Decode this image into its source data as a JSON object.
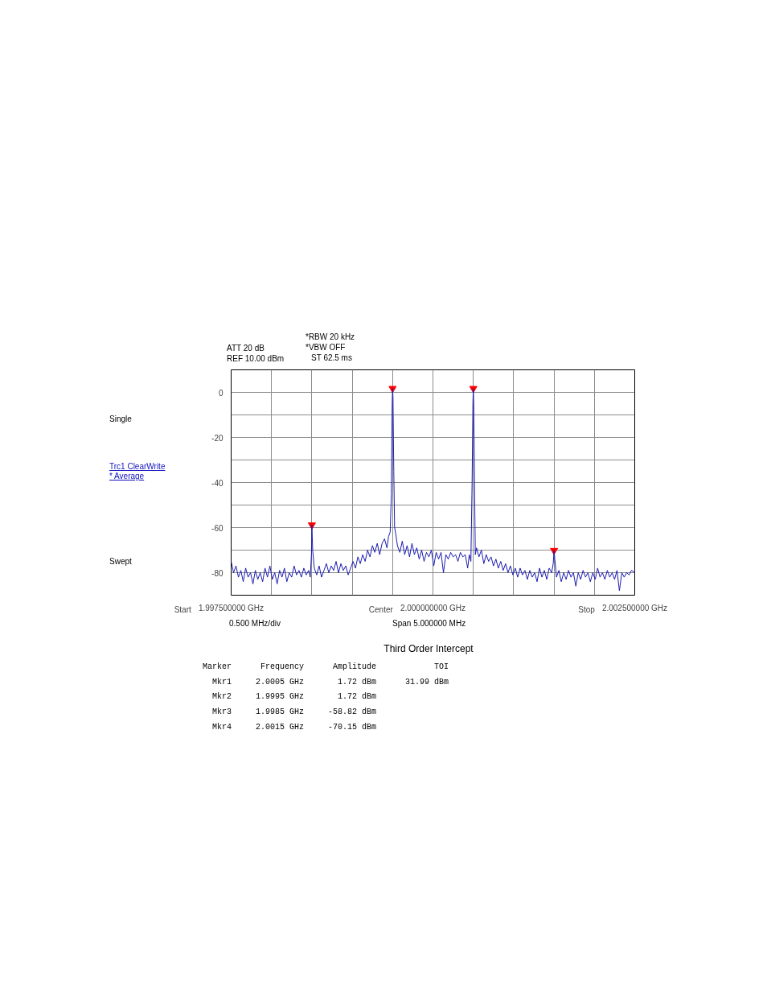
{
  "chart_data": {
    "type": "line",
    "xlim": [
      1.9975,
      2.0025
    ],
    "ylim": [
      -90,
      10
    ],
    "xticks": [
      {
        "value": 1.9975,
        "label": "1.997500000 GHz"
      },
      {
        "value": 1.998,
        "label": null
      },
      {
        "value": 1.9985,
        "label": null
      },
      {
        "value": 1.999,
        "label": null
      },
      {
        "value": 1.9995,
        "label": null
      },
      {
        "value": 2.0,
        "label": "2.000000000 GHz"
      },
      {
        "value": 2.0005,
        "label": null
      },
      {
        "value": 2.001,
        "label": null
      },
      {
        "value": 2.0015,
        "label": null
      },
      {
        "value": 2.002,
        "label": null
      },
      {
        "value": 2.0025,
        "label": "2.002500000 GHz"
      }
    ],
    "yticks": [
      0,
      {
        "value": -10,
        "label": null
      },
      -20,
      {
        "value": -30,
        "label": null
      },
      -40,
      {
        "value": -50,
        "label": null
      },
      -60,
      {
        "value": -70,
        "label": null
      },
      -80
    ],
    "grid": true,
    "line_style": "solid",
    "series": [
      {
        "type": "line",
        "color": "#1c1cb0",
        "x": [
          1.9975,
          1.99753,
          1.99756,
          1.99759,
          1.99762,
          1.99765,
          1.99768,
          1.99771,
          1.99774,
          1.99777,
          1.9978,
          1.99783,
          1.99786,
          1.99789,
          1.99792,
          1.99795,
          1.99798,
          1.99801,
          1.99804,
          1.99807,
          1.9981,
          1.99813,
          1.99816,
          1.99819,
          1.99822,
          1.99825,
          1.99828,
          1.99831,
          1.99834,
          1.99837,
          1.9984,
          1.99843,
          1.99846,
          1.99848,
          1.998495,
          1.9985,
          1.99851,
          1.99853,
          1.99856,
          1.99859,
          1.99862,
          1.99865,
          1.99868,
          1.99871,
          1.99874,
          1.99877,
          1.9988,
          1.99883,
          1.99886,
          1.99889,
          1.99892,
          1.99895,
          1.99898,
          1.99901,
          1.99904,
          1.99907,
          1.9991,
          1.99913,
          1.99916,
          1.99919,
          1.99922,
          1.99925,
          1.99928,
          1.99931,
          1.99934,
          1.99937,
          1.9994,
          1.99943,
          1.99945,
          1.99947,
          1.999485,
          1.999495,
          1.9995,
          1.999505,
          1.999515,
          1.999525,
          1.99954,
          1.99956,
          1.99959,
          1.99962,
          1.99965,
          1.99968,
          1.99971,
          1.99974,
          1.99977,
          1.9998,
          1.99983,
          1.99986,
          1.99989,
          1.99992,
          1.99995,
          1.99998,
          2.00001,
          2.00004,
          2.00007,
          2.0001,
          2.00013,
          2.00016,
          2.00019,
          2.00022,
          2.00025,
          2.00028,
          2.00031,
          2.00034,
          2.00037,
          2.0004,
          2.00043,
          2.00045,
          2.00047,
          2.000485,
          2.000495,
          2.0005,
          2.000505,
          2.000515,
          2.000525,
          2.00054,
          2.00057,
          2.0006,
          2.00063,
          2.00066,
          2.00069,
          2.00072,
          2.00075,
          2.00078,
          2.00081,
          2.00084,
          2.00087,
          2.0009,
          2.00093,
          2.00096,
          2.00099,
          2.00102,
          2.00105,
          2.00108,
          2.00111,
          2.00114,
          2.00117,
          2.0012,
          2.00123,
          2.00126,
          2.00129,
          2.00132,
          2.00135,
          2.00138,
          2.00141,
          2.00144,
          2.00147,
          2.00149,
          2.0015,
          2.00151,
          2.00153,
          2.00156,
          2.00159,
          2.00162,
          2.00165,
          2.00168,
          2.00171,
          2.00174,
          2.00177,
          2.0018,
          2.00183,
          2.00186,
          2.00189,
          2.00192,
          2.00195,
          2.00198,
          2.00201,
          2.00204,
          2.00207,
          2.0021,
          2.00213,
          2.00216,
          2.00219,
          2.00222,
          2.00225,
          2.00228,
          2.00231,
          2.00234,
          2.00237,
          2.0024,
          2.00243,
          2.00246,
          2.0025
        ],
        "values": [
          -75,
          -80,
          -77,
          -82,
          -79,
          -84,
          -78,
          -82,
          -80,
          -85,
          -79,
          -83,
          -80,
          -84,
          -78,
          -82,
          -77,
          -83,
          -80,
          -85,
          -79,
          -82,
          -78,
          -84,
          -80,
          -82,
          -77,
          -81,
          -79,
          -82,
          -78,
          -81,
          -79,
          -82,
          -72,
          -58.82,
          -70,
          -78,
          -81,
          -77,
          -82,
          -79,
          -76,
          -80,
          -77,
          -79,
          -75,
          -80,
          -76,
          -79,
          -77,
          -81,
          -78,
          -75,
          -78,
          -73,
          -76,
          -72,
          -75,
          -70,
          -73,
          -68,
          -71,
          -67,
          -72,
          -67,
          -65,
          -69,
          -64,
          -62,
          -45,
          -5,
          1.72,
          -2,
          -35,
          -60,
          -63,
          -68,
          -71,
          -66,
          -72,
          -68,
          -73,
          -67,
          -72,
          -69,
          -74,
          -70,
          -75,
          -71,
          -73,
          -70,
          -77,
          -71,
          -74,
          -71,
          -80,
          -72,
          -74,
          -71,
          -73,
          -72,
          -75,
          -71,
          -73,
          -72,
          -78,
          -72,
          -75,
          -40,
          -5,
          1.72,
          -5,
          -40,
          -72,
          -69,
          -73,
          -70,
          -76,
          -72,
          -75,
          -73,
          -77,
          -74,
          -78,
          -75,
          -79,
          -76,
          -80,
          -77,
          -81,
          -78,
          -82,
          -78,
          -81,
          -79,
          -83,
          -79,
          -82,
          -80,
          -84,
          -78,
          -82,
          -79,
          -83,
          -78,
          -80,
          -76,
          -70.15,
          -74,
          -82,
          -79,
          -84,
          -80,
          -83,
          -79,
          -82,
          -80,
          -86,
          -80,
          -83,
          -79,
          -82,
          -80,
          -84,
          -80,
          -83,
          -78,
          -82,
          -80,
          -83,
          -79,
          -82,
          -80,
          -83,
          -79,
          -88,
          -80,
          -82,
          -80,
          -81,
          -79,
          -80
        ]
      },
      {
        "type": "scatter",
        "marker": "triangle",
        "color": "#ff0000",
        "x": [
          2.0005,
          1.9995,
          1.9985,
          2.0015
        ],
        "values": [
          1.72,
          1.72,
          -58.82,
          -70.15
        ]
      }
    ],
    "annotations": [
      "ATT 20 dB",
      "REF 10.00 dBm",
      "*RBW 20 kHz",
      "*VBW OFF",
      "ST 62.5 ms",
      "Single",
      "Trc1 ClearWrite",
      "* Average",
      "Swept",
      "0.500 MHz/div",
      "Span 5.000000 MHz",
      "Third Order Intercept",
      "Marker      Frequency      Amplitude            TOI",
      "  Mkr1     2.0005 GHz       1.72 dBm      31.99 dBm",
      "  Mkr2     1.9995 GHz       1.72 dBm",
      "  Mkr3     1.9985 GHz     -58.82 dBm",
      "  Mkr4     2.0015 GHz     -70.15 dBm",
      "Start",
      "Center",
      "Stop"
    ]
  }
}
